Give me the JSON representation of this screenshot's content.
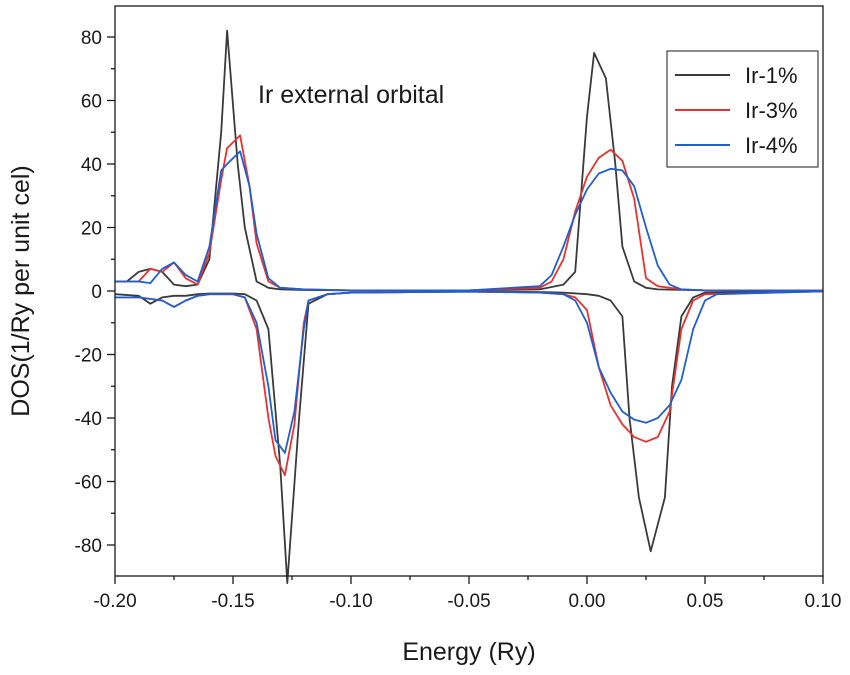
{
  "chart_data": {
    "type": "line",
    "title": "",
    "annotation": "Ir external orbital",
    "xlabel": "Energy (Ry)",
    "ylabel": "DOS(1/Ry per unit cel)",
    "xlim": [
      -0.2,
      0.1
    ],
    "ylim": [
      -90,
      90
    ],
    "x_ticks": [
      -0.2,
      -0.15,
      -0.1,
      -0.05,
      0.0,
      0.05,
      0.1
    ],
    "x_tick_labels": [
      "-0.20",
      "-0.15",
      "-0.10",
      "-0.05",
      "0.00",
      "0.05",
      "0.10"
    ],
    "y_ticks": [
      -80,
      -60,
      -40,
      -20,
      0,
      20,
      40,
      60,
      80
    ],
    "y_tick_labels": [
      "-80",
      "-60",
      "-40",
      "-20",
      "0",
      "20",
      "40",
      "60",
      "80"
    ],
    "grid": false,
    "legend_position": "top-right",
    "series": [
      {
        "name": "Ir-1%",
        "color": "#3a3a3a",
        "up": [
          [
            -0.2,
            3
          ],
          [
            -0.195,
            3
          ],
          [
            -0.19,
            6
          ],
          [
            -0.185,
            7
          ],
          [
            -0.18,
            6
          ],
          [
            -0.175,
            2
          ],
          [
            -0.17,
            1.5
          ],
          [
            -0.165,
            2
          ],
          [
            -0.16,
            10
          ],
          [
            -0.155,
            50
          ],
          [
            -0.1525,
            82
          ],
          [
            -0.148,
            40
          ],
          [
            -0.145,
            20
          ],
          [
            -0.14,
            3
          ],
          [
            -0.135,
            1
          ],
          [
            -0.13,
            0.5
          ],
          [
            -0.12,
            0.3
          ],
          [
            -0.1,
            0.2
          ],
          [
            -0.05,
            0.2
          ],
          [
            -0.02,
            0.5
          ],
          [
            -0.01,
            2
          ],
          [
            -0.005,
            6
          ],
          [
            0.0,
            55
          ],
          [
            0.003,
            75
          ],
          [
            0.008,
            67
          ],
          [
            0.012,
            40
          ],
          [
            0.015,
            14
          ],
          [
            0.02,
            3
          ],
          [
            0.025,
            1
          ],
          [
            0.03,
            0.5
          ],
          [
            0.05,
            0.2
          ],
          [
            0.1,
            0.1
          ]
        ],
        "down": [
          [
            -0.2,
            -1
          ],
          [
            -0.19,
            -1.5
          ],
          [
            -0.185,
            -4
          ],
          [
            -0.18,
            -2
          ],
          [
            -0.175,
            -1.5
          ],
          [
            -0.17,
            -1.5
          ],
          [
            -0.165,
            -1
          ],
          [
            -0.16,
            -0.8
          ],
          [
            -0.15,
            -0.8
          ],
          [
            -0.145,
            -1
          ],
          [
            -0.14,
            -3
          ],
          [
            -0.135,
            -12
          ],
          [
            -0.13,
            -55
          ],
          [
            -0.127,
            -92
          ],
          [
            -0.122,
            -40
          ],
          [
            -0.118,
            -4
          ],
          [
            -0.11,
            -1
          ],
          [
            -0.1,
            -0.5
          ],
          [
            -0.05,
            -0.2
          ],
          [
            -0.02,
            -0.3
          ],
          [
            -0.01,
            -0.5
          ],
          [
            0.0,
            -1
          ],
          [
            0.005,
            -1.5
          ],
          [
            0.01,
            -3
          ],
          [
            0.015,
            -8
          ],
          [
            0.018,
            -40
          ],
          [
            0.022,
            -65
          ],
          [
            0.027,
            -82
          ],
          [
            0.033,
            -65
          ],
          [
            0.036,
            -30
          ],
          [
            0.04,
            -8
          ],
          [
            0.045,
            -2
          ],
          [
            0.05,
            -0.5
          ],
          [
            0.1,
            -0.1
          ]
        ]
      },
      {
        "name": "Ir-3%",
        "color": "#e8322f",
        "up": [
          [
            -0.2,
            3
          ],
          [
            -0.19,
            3
          ],
          [
            -0.185,
            7
          ],
          [
            -0.18,
            6
          ],
          [
            -0.175,
            9
          ],
          [
            -0.17,
            4
          ],
          [
            -0.165,
            2
          ],
          [
            -0.16,
            12
          ],
          [
            -0.155,
            35
          ],
          [
            -0.1525,
            45
          ],
          [
            -0.147,
            49
          ],
          [
            -0.143,
            33
          ],
          [
            -0.14,
            15
          ],
          [
            -0.135,
            3
          ],
          [
            -0.13,
            1
          ],
          [
            -0.12,
            0.5
          ],
          [
            -0.1,
            0.2
          ],
          [
            -0.05,
            0.2
          ],
          [
            -0.02,
            1
          ],
          [
            -0.015,
            3
          ],
          [
            -0.01,
            10
          ],
          [
            -0.005,
            25
          ],
          [
            0.0,
            36
          ],
          [
            0.005,
            42
          ],
          [
            0.01,
            44.5
          ],
          [
            0.015,
            41
          ],
          [
            0.02,
            29
          ],
          [
            0.025,
            4
          ],
          [
            0.03,
            1.5
          ],
          [
            0.04,
            0.5
          ],
          [
            0.05,
            0.2
          ],
          [
            0.1,
            0.1
          ]
        ],
        "down": [
          [
            -0.2,
            -2
          ],
          [
            -0.19,
            -2
          ],
          [
            -0.18,
            -3
          ],
          [
            -0.175,
            -5
          ],
          [
            -0.17,
            -3
          ],
          [
            -0.165,
            -1.5
          ],
          [
            -0.16,
            -1
          ],
          [
            -0.15,
            -1
          ],
          [
            -0.145,
            -2
          ],
          [
            -0.14,
            -12
          ],
          [
            -0.135,
            -40
          ],
          [
            -0.132,
            -52
          ],
          [
            -0.128,
            -58
          ],
          [
            -0.124,
            -42
          ],
          [
            -0.12,
            -10
          ],
          [
            -0.118,
            -3
          ],
          [
            -0.11,
            -1
          ],
          [
            -0.1,
            -0.5
          ],
          [
            -0.05,
            -0.2
          ],
          [
            -0.02,
            -0.5
          ],
          [
            -0.01,
            -1
          ],
          [
            -0.005,
            -2
          ],
          [
            0.0,
            -6
          ],
          [
            0.005,
            -24
          ],
          [
            0.01,
            -36
          ],
          [
            0.015,
            -42
          ],
          [
            0.02,
            -46
          ],
          [
            0.025,
            -47.5
          ],
          [
            0.03,
            -46
          ],
          [
            0.035,
            -38
          ],
          [
            0.04,
            -12
          ],
          [
            0.045,
            -3
          ],
          [
            0.05,
            -1
          ],
          [
            0.1,
            -0.1
          ]
        ]
      },
      {
        "name": "Ir-4%",
        "color": "#1f5fcf",
        "up": [
          [
            -0.2,
            3
          ],
          [
            -0.19,
            3
          ],
          [
            -0.185,
            2.5
          ],
          [
            -0.18,
            7
          ],
          [
            -0.175,
            9
          ],
          [
            -0.17,
            5
          ],
          [
            -0.165,
            3
          ],
          [
            -0.16,
            14
          ],
          [
            -0.155,
            38
          ],
          [
            -0.1525,
            40
          ],
          [
            -0.147,
            44
          ],
          [
            -0.143,
            33
          ],
          [
            -0.14,
            18
          ],
          [
            -0.135,
            4
          ],
          [
            -0.13,
            1
          ],
          [
            -0.12,
            0.5
          ],
          [
            -0.1,
            0.2
          ],
          [
            -0.05,
            0.2
          ],
          [
            -0.02,
            1.5
          ],
          [
            -0.015,
            5
          ],
          [
            -0.01,
            14
          ],
          [
            -0.005,
            24
          ],
          [
            0.0,
            32
          ],
          [
            0.005,
            37
          ],
          [
            0.01,
            38.5
          ],
          [
            0.015,
            38
          ],
          [
            0.02,
            33
          ],
          [
            0.025,
            20
          ],
          [
            0.03,
            8
          ],
          [
            0.035,
            2
          ],
          [
            0.04,
            0.5
          ],
          [
            0.05,
            0.2
          ],
          [
            0.1,
            0.1
          ]
        ],
        "down": [
          [
            -0.2,
            -2
          ],
          [
            -0.19,
            -2
          ],
          [
            -0.18,
            -3
          ],
          [
            -0.175,
            -5
          ],
          [
            -0.17,
            -3
          ],
          [
            -0.165,
            -1.5
          ],
          [
            -0.16,
            -1
          ],
          [
            -0.15,
            -1
          ],
          [
            -0.145,
            -2
          ],
          [
            -0.14,
            -10
          ],
          [
            -0.135,
            -30
          ],
          [
            -0.132,
            -47
          ],
          [
            -0.128,
            -51
          ],
          [
            -0.124,
            -38
          ],
          [
            -0.12,
            -12
          ],
          [
            -0.118,
            -3
          ],
          [
            -0.11,
            -1
          ],
          [
            -0.1,
            -0.5
          ],
          [
            -0.05,
            -0.2
          ],
          [
            -0.02,
            -0.5
          ],
          [
            -0.01,
            -1
          ],
          [
            -0.005,
            -3
          ],
          [
            0.0,
            -10
          ],
          [
            0.005,
            -24
          ],
          [
            0.01,
            -32
          ],
          [
            0.015,
            -38
          ],
          [
            0.02,
            -40.5
          ],
          [
            0.025,
            -41.5
          ],
          [
            0.03,
            -40
          ],
          [
            0.035,
            -36
          ],
          [
            0.04,
            -28
          ],
          [
            0.045,
            -12
          ],
          [
            0.05,
            -3
          ],
          [
            0.055,
            -1
          ],
          [
            0.1,
            -0.1
          ]
        ]
      }
    ]
  }
}
